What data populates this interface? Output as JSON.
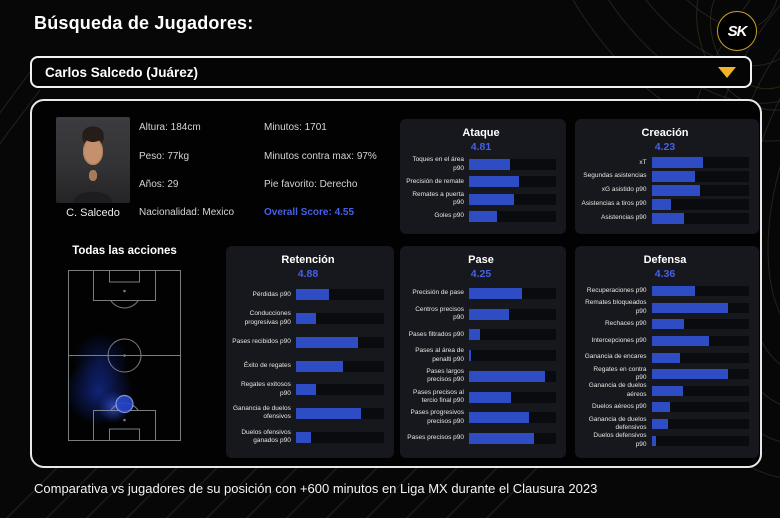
{
  "header": {
    "title": "Búsqueda de Jugadores:",
    "logo_text": "SK"
  },
  "player_select": {
    "value": "Carlos Salcedo (Juárez)"
  },
  "player": {
    "name": "C. Salcedo",
    "info_left": [
      "Altura: 184cm",
      "Peso: 77kg",
      "Años: 29",
      "Nacionalidad: Mexico"
    ],
    "info_right": [
      "Minutos: 1701",
      "Minutos contra max: 97%",
      "Pie favorito: Derecho"
    ],
    "overall_score": "Overall Score: 4.55"
  },
  "pitch": {
    "title": "Todas las acciones"
  },
  "footer": {
    "note": "Comparativa vs jugadores de su posición con +600 minutos en Liga MX durante el Clausura 2023"
  },
  "colors": {
    "accent_blue": "#2e4cc4",
    "score_blue": "#4660e6",
    "gold": "#f0b429",
    "pitch_line": "#8d9399",
    "heat_blue": "#1d3fd6"
  },
  "chart_data": [
    {
      "type": "bar",
      "title": "Ataque",
      "score": "4.81",
      "categories": [
        "Toques en el área p90",
        "Precisión de remate",
        "Remates a puerta p90",
        "Goles p90"
      ],
      "values": [
        47,
        57,
        52,
        32
      ],
      "xlim": [
        0,
        100
      ],
      "value_unit": "percent_of_track"
    },
    {
      "type": "bar",
      "title": "Creación",
      "score": "4.23",
      "categories": [
        "xT",
        "Segundas asistencias",
        "xG asistido p90",
        "Asistencias a tiros p90",
        "Asistencias p90"
      ],
      "values": [
        53,
        45,
        50,
        20,
        33
      ],
      "xlim": [
        0,
        100
      ],
      "value_unit": "percent_of_track"
    },
    {
      "type": "bar",
      "title": "Retención",
      "score": "4.88",
      "categories": [
        "Pérdidas p90",
        "Conducciones progresivas p90",
        "Pases recibidos p90",
        "Éxito de regates",
        "Regates exitosos p90",
        "Ganancia de duelos ofensivos",
        "Duelos ofensivos ganados p90"
      ],
      "values": [
        38,
        23,
        71,
        54,
        23,
        74,
        17
      ],
      "xlim": [
        0,
        100
      ],
      "value_unit": "percent_of_track"
    },
    {
      "type": "bar",
      "title": "Pase",
      "score": "4.25",
      "categories": [
        "Precisión de pase",
        "Centros precisos p90",
        "Pases filtrados p90",
        "Pases al área de penalti p90",
        "Pases largos precisos p90",
        "Pases precisos al tercio final p90",
        "Pases progresivos precisos p90",
        "Pases precisos p90"
      ],
      "values": [
        61,
        46,
        13,
        2,
        87,
        48,
        69,
        75
      ],
      "xlim": [
        0,
        100
      ],
      "value_unit": "percent_of_track"
    },
    {
      "type": "bar",
      "title": "Defensa",
      "score": "4.36",
      "categories": [
        "Recuperaciones p90",
        "Remates bloqueados p90",
        "Rechaces p90",
        "Intercepciones p90",
        "Ganancia de encares",
        "Regates en contra p90",
        "Ganancia de duelos aéreos",
        "Duelos aéreos p90",
        "Ganancia de duelos defensivos",
        "Duelos defensivos p90"
      ],
      "values": [
        45,
        78,
        33,
        59,
        29,
        78,
        32,
        19,
        17,
        5
      ],
      "xlim": [
        0,
        100
      ],
      "value_unit": "percent_of_track"
    }
  ]
}
